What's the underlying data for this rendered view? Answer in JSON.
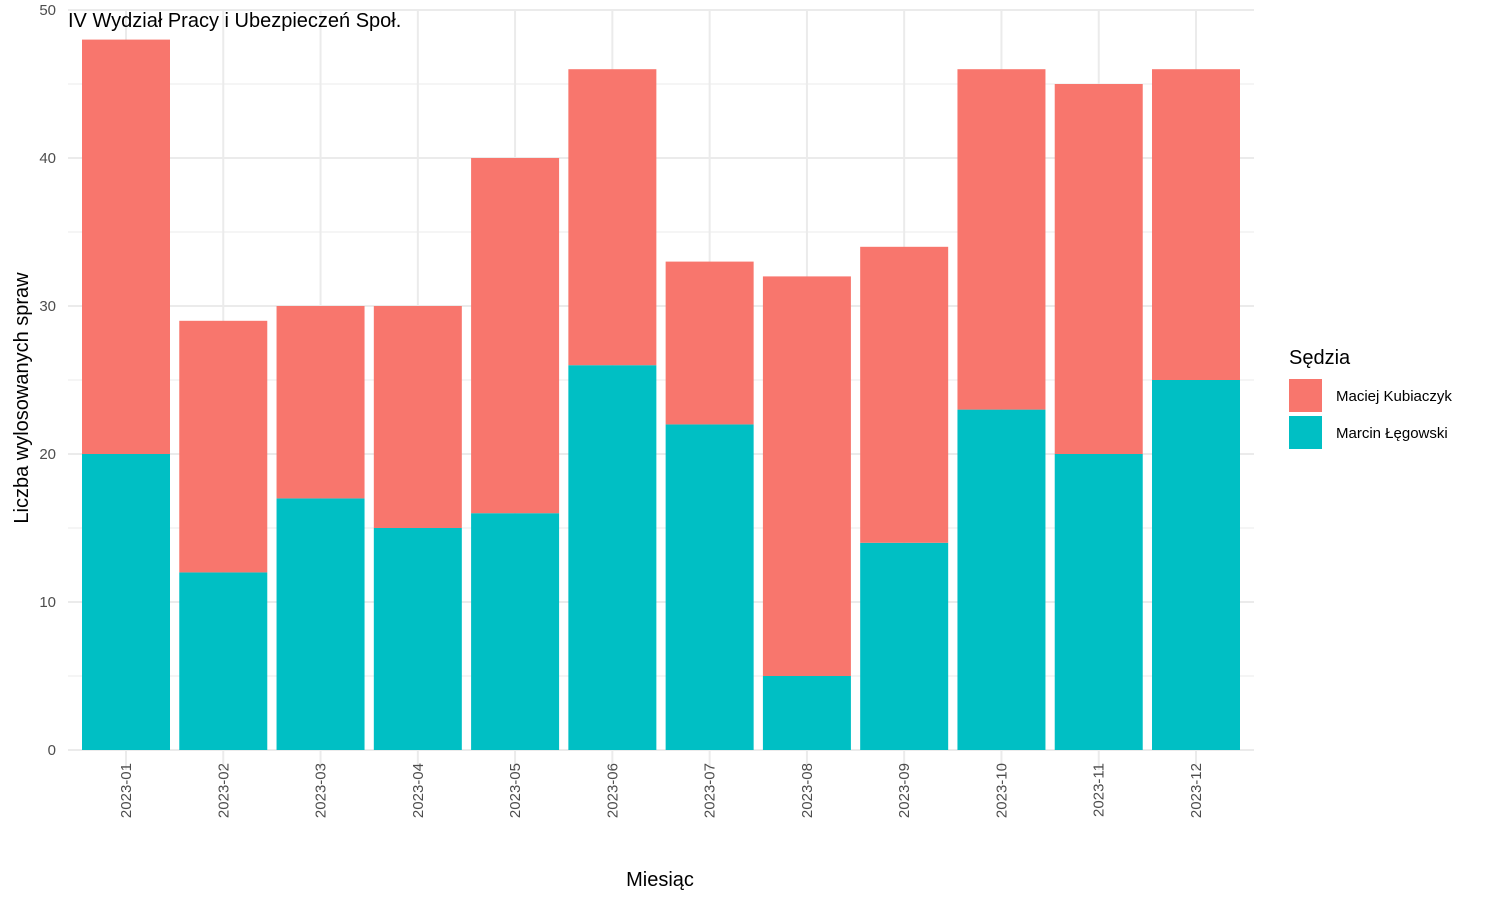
{
  "chart_data": {
    "type": "bar",
    "stacked": true,
    "title": "IV Wydział Pracy i Ubezpieczeń Społ.",
    "xlabel": "Miesiąc",
    "ylabel": "Liczba wylosowanych spraw",
    "ylim": [
      0,
      50
    ],
    "yticks": [
      "0",
      "10",
      "20",
      "30",
      "40",
      "50"
    ],
    "grid": true,
    "legend": {
      "title": "Sędzia",
      "position": "right"
    },
    "categories": [
      "2023-01",
      "2023-02",
      "2023-03",
      "2023-04",
      "2023-05",
      "2023-06",
      "2023-07",
      "2023-08",
      "2023-09",
      "2023-10",
      "2023-11",
      "2023-12"
    ],
    "series": [
      {
        "name": "Marcin Łęgowski",
        "color": "#00BFC4",
        "values": [
          20,
          12,
          17,
          15,
          16,
          26,
          22,
          5,
          14,
          23,
          20,
          25
        ]
      },
      {
        "name": "Maciej Kubiaczyk",
        "color": "#F8766D",
        "values": [
          28,
          17,
          13,
          15,
          24,
          20,
          11,
          27,
          20,
          23,
          25,
          21
        ]
      }
    ],
    "legend_order": [
      "Maciej Kubiaczyk",
      "Marcin Łęgowski"
    ]
  }
}
